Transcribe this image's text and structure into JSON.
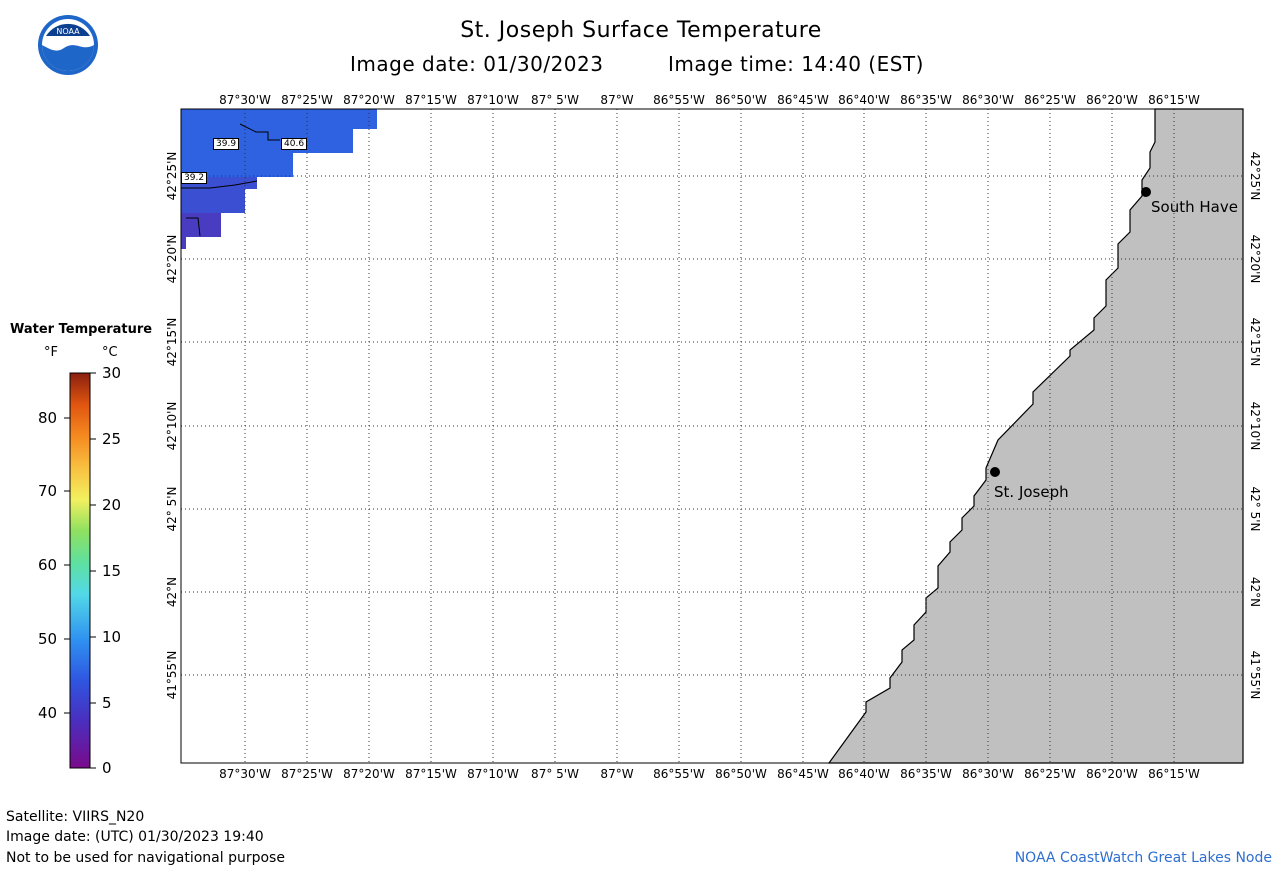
{
  "header": {
    "title": "St. Joseph Surface Temperature",
    "image_date": "Image date: 01/30/2023",
    "image_time": "Image time: 14:40 (EST)"
  },
  "logo": {
    "text": "NOAA",
    "icon": "noaa-logo-icon"
  },
  "map": {
    "lon_labels": [
      "87°30'W",
      "87°25'W",
      "87°20'W",
      "87°15'W",
      "87°10'W",
      "87° 5'W",
      "87°W",
      "86°55'W",
      "86°50'W",
      "86°45'W",
      "86°40'W",
      "86°35'W",
      "86°30'W",
      "86°25'W",
      "86°20'W",
      "86°15'W"
    ],
    "lat_labels": [
      "42°25'N",
      "42°20'N",
      "42°15'N",
      "42°10'N",
      "42° 5'N",
      "42°N",
      "41°55'N"
    ],
    "places": [
      {
        "name": "South Have"
      },
      {
        "name": "St. Joseph"
      }
    ],
    "isotherm_labels": [
      "39.9",
      "40.6",
      "39.2"
    ],
    "colors": {
      "land": "#c0c0c0",
      "water_cold": "#3a48c8",
      "water_warm": "#2f6ae8"
    }
  },
  "legend": {
    "title": "Water Temperature",
    "unit_f": "°F",
    "unit_c": "°C",
    "f_ticks": [
      "80",
      "70",
      "60",
      "50",
      "40"
    ],
    "c_ticks": [
      "30",
      "25",
      "20",
      "15",
      "10",
      "5",
      "0"
    ]
  },
  "footer": {
    "satellite": "Satellite: VIIRS_N20",
    "utc_date": "Image date: (UTC) 01/30/2023  19:40",
    "disclaimer": "Not to be used for navigational purpose",
    "credit": "NOAA CoastWatch Great Lakes Node"
  }
}
